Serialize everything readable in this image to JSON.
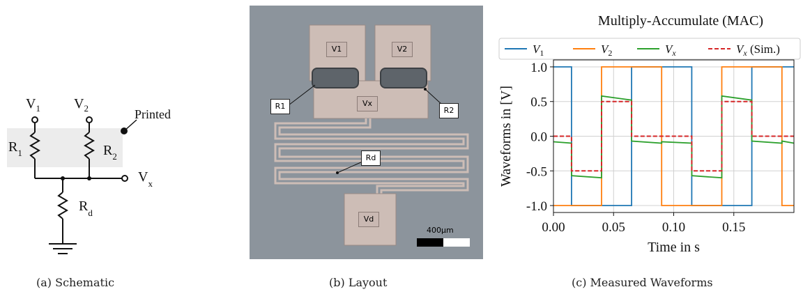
{
  "captions": {
    "a": "(a) Schematic",
    "b": "(b) Layout",
    "c": "(c) Measured Waveforms"
  },
  "schematic": {
    "v1": "V",
    "v1_sub": "1",
    "v2": "V",
    "v2_sub": "2",
    "r1": "R",
    "r1_sub": "1",
    "r2": "R",
    "r2_sub": "2",
    "rd": "R",
    "rd_sub": "d",
    "vx": "V",
    "vx_sub": "x",
    "printed": "Printed"
  },
  "layout": {
    "v1": "V1",
    "v2": "V2",
    "vx": "Vx",
    "vd": "Vd",
    "r1": "R1",
    "r2": "R2",
    "rd": "Rd",
    "scale": "400µm"
  },
  "chart_data": {
    "type": "line",
    "title": "Multiply-Accumulate (MAC)",
    "xlabel": "Time in s",
    "ylabel": "Waveforms in [V]",
    "xlim": [
      0.0,
      0.2
    ],
    "ylim": [
      -1.1,
      1.1
    ],
    "xticks": [
      "0.00",
      "0.05",
      "0.10",
      "0.15"
    ],
    "yticks": [
      "1.0",
      "0.5",
      "0.0",
      "-0.5",
      "-1.0"
    ],
    "grid": true,
    "legend_position": "top",
    "series": [
      {
        "name": "V1",
        "color": "#1f77b4",
        "style": "solid",
        "x": [
          0.0,
          0.015,
          0.015,
          0.065,
          0.065,
          0.115,
          0.115,
          0.165,
          0.165,
          0.2
        ],
        "y": [
          1.0,
          1.0,
          -1.0,
          -1.0,
          1.0,
          1.0,
          -1.0,
          -1.0,
          1.0,
          1.0
        ]
      },
      {
        "name": "V2",
        "color": "#ff7f0e",
        "style": "solid",
        "x": [
          0.0,
          0.04,
          0.04,
          0.09,
          0.09,
          0.14,
          0.14,
          0.19,
          0.19,
          0.2
        ],
        "y": [
          -1.0,
          -1.0,
          1.0,
          1.0,
          -1.0,
          -1.0,
          1.0,
          1.0,
          -1.0,
          -1.0
        ]
      },
      {
        "name": "Vx",
        "color": "#2ca02c",
        "style": "solid",
        "x": [
          0.0,
          0.015,
          0.015,
          0.04,
          0.04,
          0.065,
          0.065,
          0.09,
          0.09,
          0.115,
          0.115,
          0.14,
          0.14,
          0.165,
          0.165,
          0.19,
          0.19,
          0.2
        ],
        "y": [
          -0.08,
          -0.1,
          -0.57,
          -0.6,
          0.58,
          0.52,
          -0.07,
          -0.1,
          -0.08,
          -0.1,
          -0.57,
          -0.6,
          0.58,
          0.52,
          -0.07,
          -0.1,
          -0.07,
          -0.1
        ]
      },
      {
        "name": "Vx (Sim.)",
        "color": "#d62728",
        "style": "dashed",
        "x": [
          0.0,
          0.015,
          0.015,
          0.04,
          0.04,
          0.065,
          0.065,
          0.09,
          0.09,
          0.115,
          0.115,
          0.14,
          0.14,
          0.165,
          0.165,
          0.19,
          0.19,
          0.2
        ],
        "y": [
          0.0,
          0.0,
          -0.5,
          -0.5,
          0.5,
          0.5,
          0.0,
          0.0,
          0.0,
          0.0,
          -0.5,
          -0.5,
          0.5,
          0.5,
          0.0,
          0.0,
          0.0,
          0.0
        ]
      }
    ]
  }
}
